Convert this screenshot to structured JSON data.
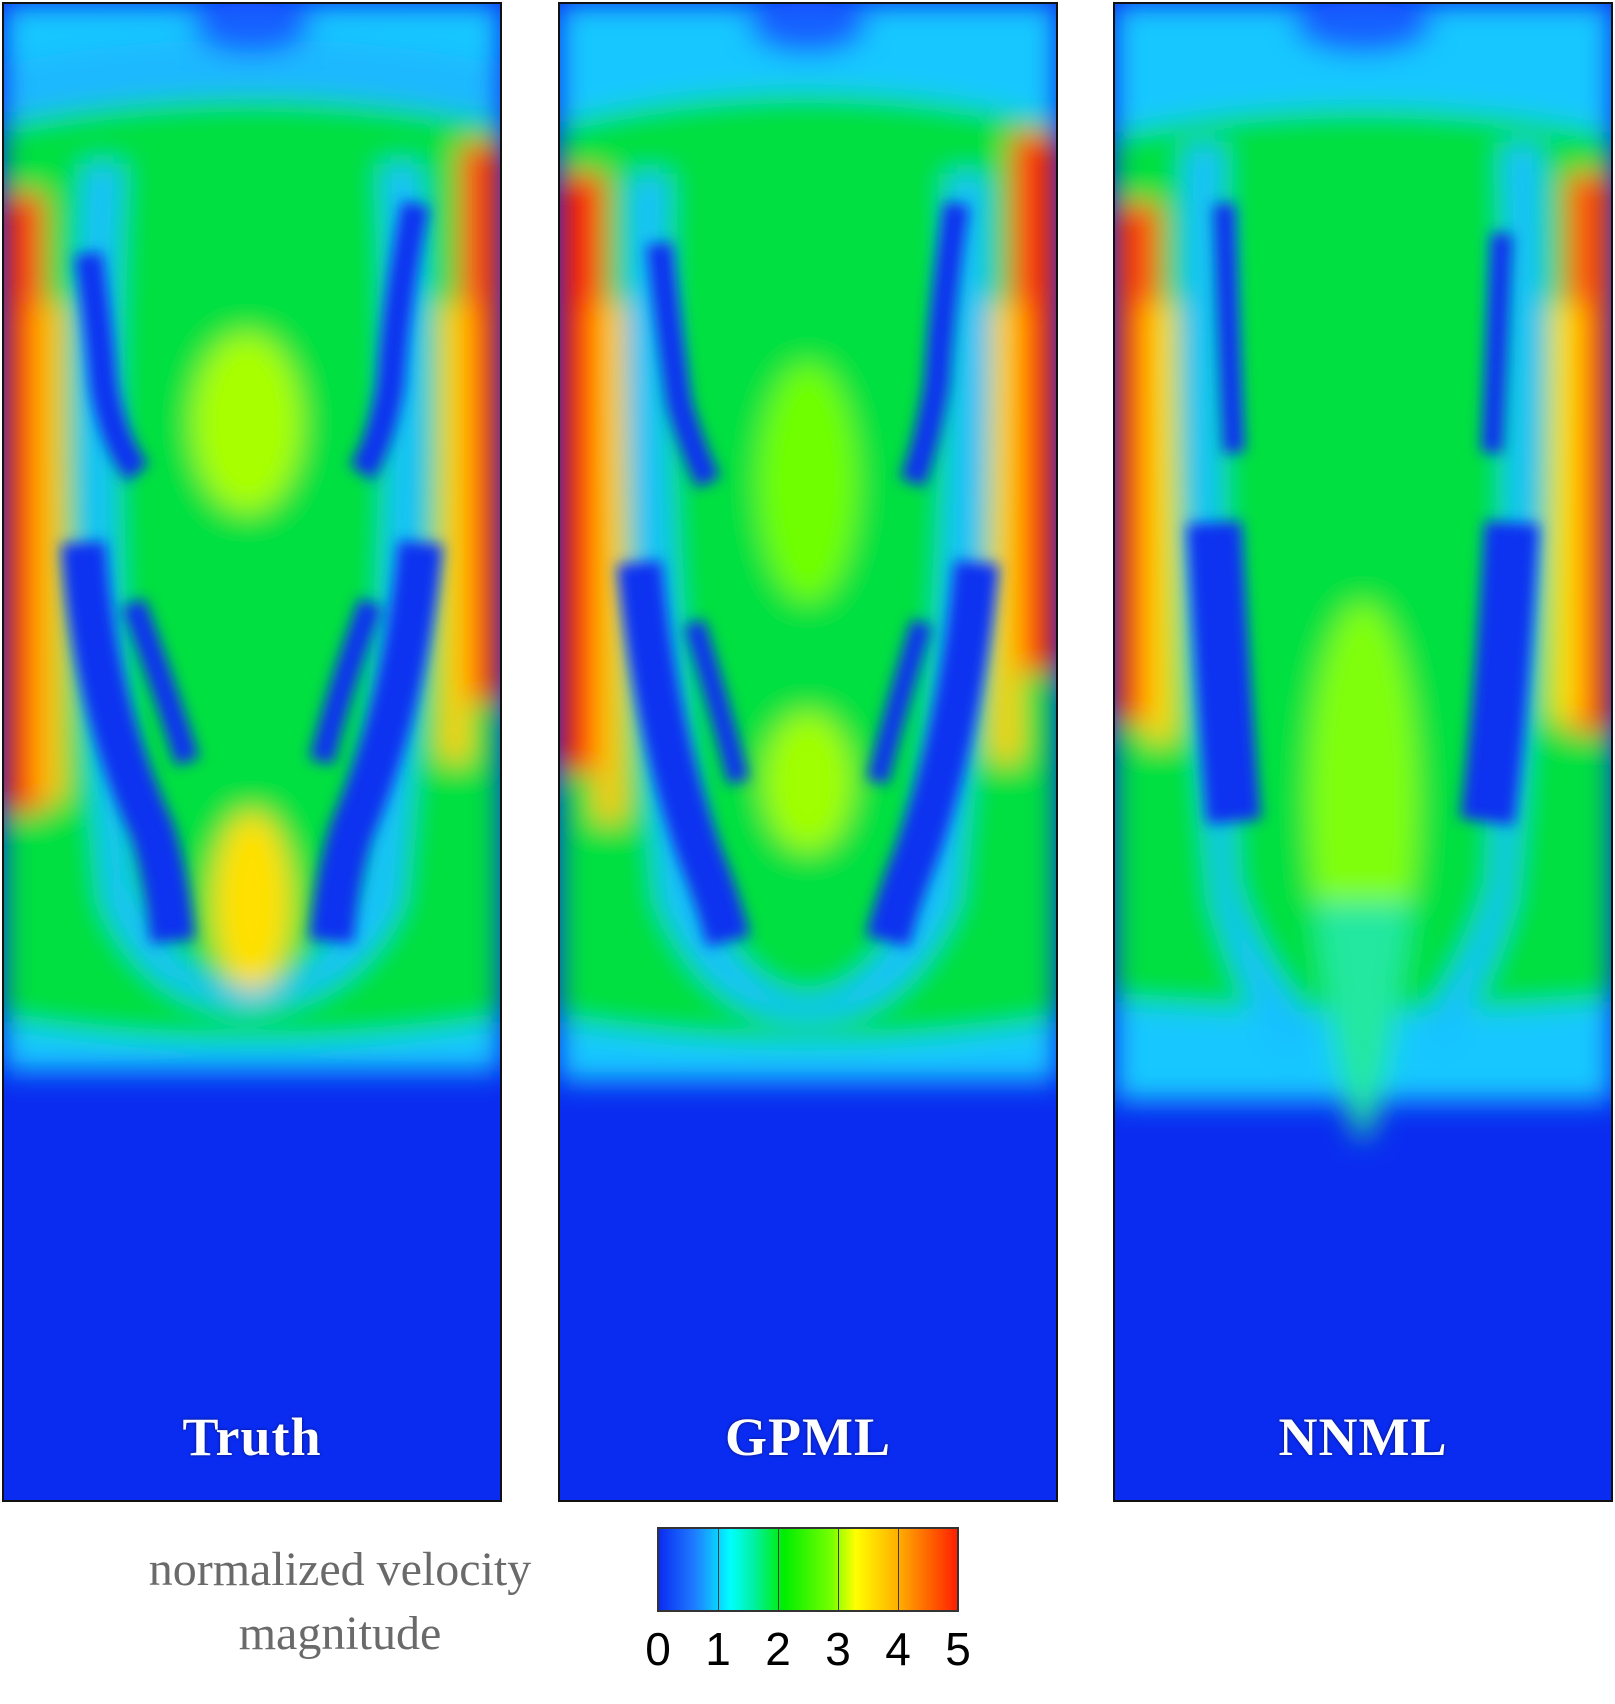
{
  "panels": [
    {
      "id": "truth",
      "label": "Truth"
    },
    {
      "id": "gpml",
      "label": "GPML"
    },
    {
      "id": "nnml",
      "label": "NNML"
    }
  ],
  "legend": {
    "title_line1": "normalized velocity",
    "title_line2": "magnitude",
    "ticks": [
      "0",
      "1",
      "2",
      "3",
      "4",
      "5"
    ]
  },
  "colormap": {
    "low": "#0a2cf0",
    "cyan": "#00ffff",
    "green": "#00ee00",
    "yellow": "#ffff00",
    "high": "#ff2000"
  }
}
